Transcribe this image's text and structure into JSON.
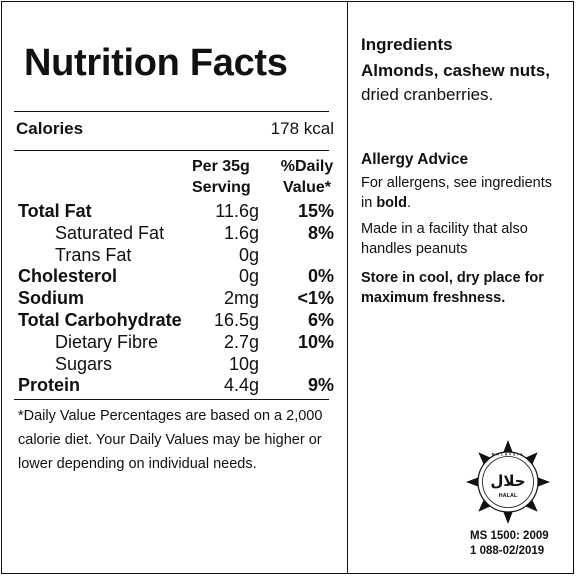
{
  "nutrition": {
    "title": "Nutrition Facts",
    "calories_label": "Calories",
    "calories_value": "178 kcal",
    "col_per_line1": "Per 35g",
    "col_per_line2": "Serving",
    "col_dv_line1": "%Daily",
    "col_dv_line2": "Value*",
    "rows": [
      {
        "name": "Total Fat",
        "amount": "11.6g",
        "dv": "15%"
      },
      {
        "name": "Saturated Fat",
        "amount": "1.6g",
        "dv": "8%"
      },
      {
        "name": "Trans Fat",
        "amount": "0g",
        "dv": ""
      },
      {
        "name": "Cholesterol",
        "amount": "0g",
        "dv": "0%"
      },
      {
        "name": "Sodium",
        "amount": "2mg",
        "dv": "<1%"
      },
      {
        "name": "Total Carbohydrate",
        "amount": "16.5g",
        "dv": "6%"
      },
      {
        "name": "Dietary Fibre",
        "amount": "2.7g",
        "dv": "10%"
      },
      {
        "name": "Sugars",
        "amount": "10g",
        "dv": ""
      },
      {
        "name": "Protein",
        "amount": "4.4g",
        "dv": "9%"
      }
    ],
    "footnote": "*Daily Value Percentages are based on a 2,000 calorie diet. Your Daily Values may be higher or lower depending on individual needs."
  },
  "ingredients": {
    "title": "Ingredients",
    "bold_text": "Almonds, cashew nuts,",
    "rest_text": "dried cranberries."
  },
  "allergy": {
    "title": "Allergy Advice",
    "line1_prefix": "For allergens, see ingredients in ",
    "line1_bold": "bold",
    "line1_suffix": ".",
    "line2": "Made in a facility that also handles peanuts",
    "storage": "Store in cool, dry place for maximum freshness."
  },
  "certification": {
    "logo_icon": "halal-logo-icon",
    "logo_script": "حلال",
    "logo_text": "HALAL",
    "logo_ring_text": "MALAYSIA",
    "ms_line1": "MS 1500: 2009",
    "ms_line2": "1 088-02/2019"
  }
}
